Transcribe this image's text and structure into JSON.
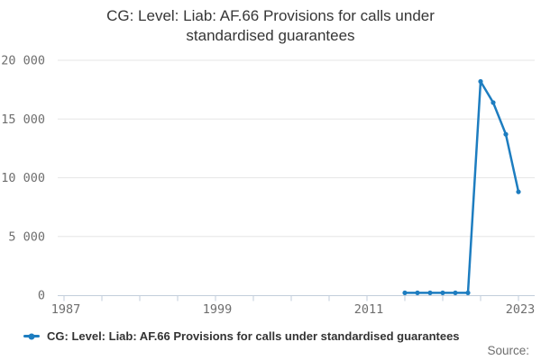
{
  "header": {
    "title": "CG: Level: Liab: AF.66 Provisions for calls under standardised guarantees",
    "title_lines": [
      "CG: Level: Liab: AF.66 Provisions for calls under",
      "standardised guarantees"
    ]
  },
  "legend": {
    "marker_icon": "line-with-dot-icon",
    "label": "CG: Level: Liab: AF.66 Provisions for calls under standardised guarantees"
  },
  "footer": {
    "source_label": "Source:"
  },
  "colors": {
    "line": "#1d7dc0",
    "grid": "#e6e6e6",
    "axis": "#c2cedb",
    "title_text": "#363636",
    "muted_text": "#6e6e6e"
  },
  "chart_data": {
    "type": "line",
    "title": "CG: Level: Liab: AF.66 Provisions for calls under standardised guarantees",
    "xlabel": "",
    "ylabel": "",
    "xlim": [
      1987,
      2023
    ],
    "ylim": [
      0,
      20000
    ],
    "x_ticks": [
      1987,
      1990,
      1993,
      1996,
      1999,
      2002,
      2005,
      2008,
      2011,
      2014,
      2017,
      2020,
      2023
    ],
    "x_tick_labels": [
      "1987",
      "1999",
      "2011",
      "2023"
    ],
    "y_ticks": [
      0,
      5000,
      10000,
      15000,
      20000
    ],
    "y_tick_labels": [
      "0",
      "5 000",
      "10 000",
      "15 000",
      "20 000"
    ],
    "grid": "horizontal",
    "legend_position": "bottom-left",
    "series": [
      {
        "name": "CG: Level: Liab: AF.66 Provisions for calls under standardised guarantees",
        "color": "#1d7dc0",
        "marker": "circle",
        "x": [
          2014,
          2015,
          2016,
          2017,
          2018,
          2019,
          2020,
          2021,
          2022,
          2023
        ],
        "y": [
          200,
          200,
          200,
          200,
          200,
          200,
          18200,
          16400,
          13700,
          8800
        ]
      }
    ]
  }
}
